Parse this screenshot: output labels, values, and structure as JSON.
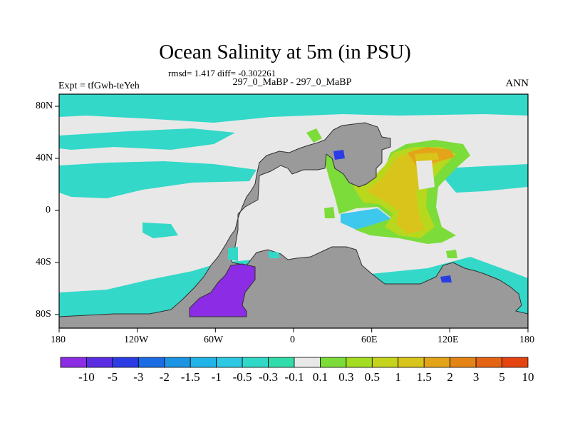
{
  "title": "Ocean Salinity at 5m (in PSU)",
  "stats_text": "rmsd= 1.417 diff= -0.302261",
  "subtitle_left": "Expt = tfGwh-teYeh",
  "subtitle_center": "297_0_MaBP - 297_0_MaBP",
  "subtitle_right": "ANN",
  "axes": {
    "x_ticks": [
      "180",
      "120W",
      "60W",
      "0",
      "60E",
      "120E",
      "180"
    ],
    "y_ticks": [
      "80N",
      "40N",
      "0",
      "40S",
      "80S"
    ]
  },
  "colors": {
    "land": "#9a9a9a",
    "near_zero": "#e8e8e8",
    "cyan_light": "#33d8c8",
    "cyan_mid": "#3ec8ee",
    "green_light": "#7cdc3a",
    "yellow_green": "#b8d81e",
    "yellow": "#d8c41a",
    "orange": "#e4a41a",
    "purple": "#8c2ce4",
    "blue_dark": "#2c3ce4",
    "blue": "#1a6ce4"
  },
  "colorbar": {
    "labels": [
      "-10",
      "-5",
      "-3",
      "-2",
      "-1.5",
      "-1",
      "-0.5",
      "-0.3",
      "-0.1",
      "0.1",
      "0.3",
      "0.5",
      "1",
      "1.5",
      "2",
      "3",
      "5",
      "10"
    ],
    "colors": [
      "#8c2ce4",
      "#5a2ce4",
      "#2c3ce4",
      "#1a6ce4",
      "#1c94e4",
      "#20b4e8",
      "#2cc8e4",
      "#30d8c8",
      "#30dcaa",
      "#e8e8e8",
      "#7cdc3a",
      "#a4dc22",
      "#c4d41c",
      "#d8c41a",
      "#e4a41a",
      "#e48416",
      "#e46414",
      "#e44410"
    ]
  }
}
